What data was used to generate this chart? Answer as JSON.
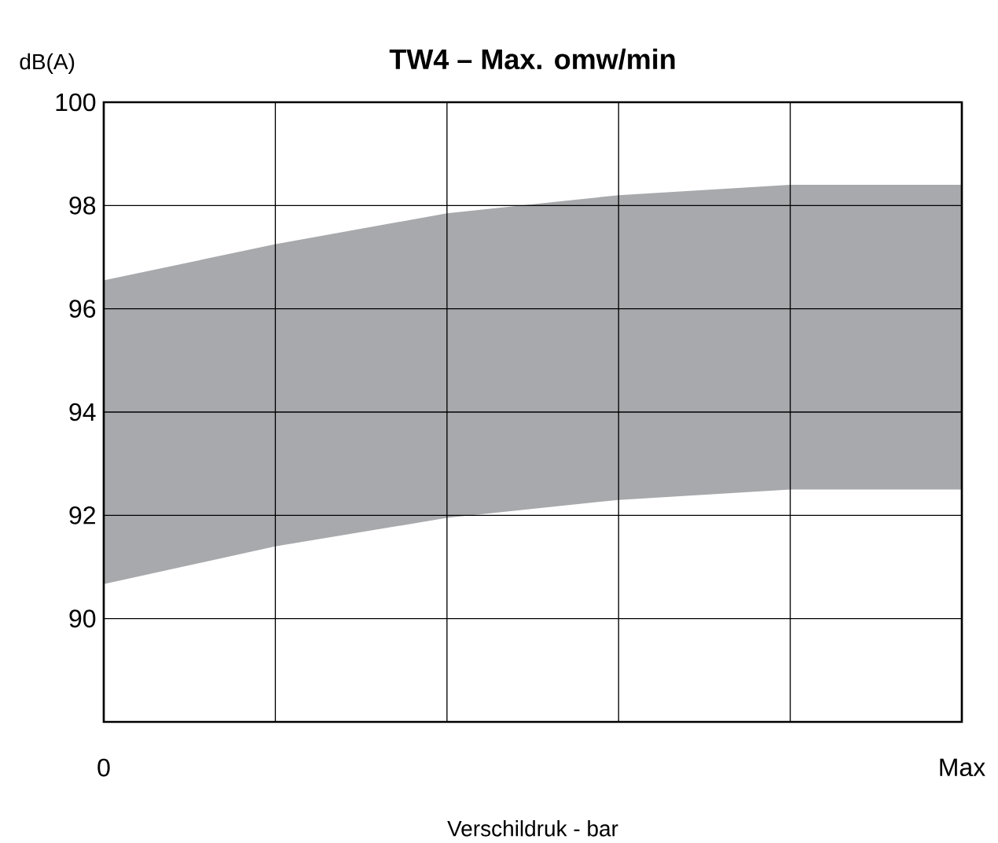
{
  "chart_data": {
    "type": "area",
    "title": "TW4 – Max. omw/min",
    "xlabel": "Verschildruk - bar",
    "ylabel": "dB(A)",
    "categories": [
      "0",
      null,
      null,
      null,
      null,
      "Max"
    ],
    "series": [
      {
        "color": "#a7a9ac",
        "values": [
          96.55,
          97.25,
          97.85,
          98.2,
          98.4,
          98.4
        ]
      },
      {
        "color": "#ffffff",
        "values": [
          90.67,
          91.4,
          91.95,
          92.3,
          92.5,
          92.5
        ]
      }
    ],
    "ylim": [
      88,
      100
    ],
    "yticks": [
      90,
      92,
      94,
      96,
      98,
      100
    ],
    "grid": true
  }
}
